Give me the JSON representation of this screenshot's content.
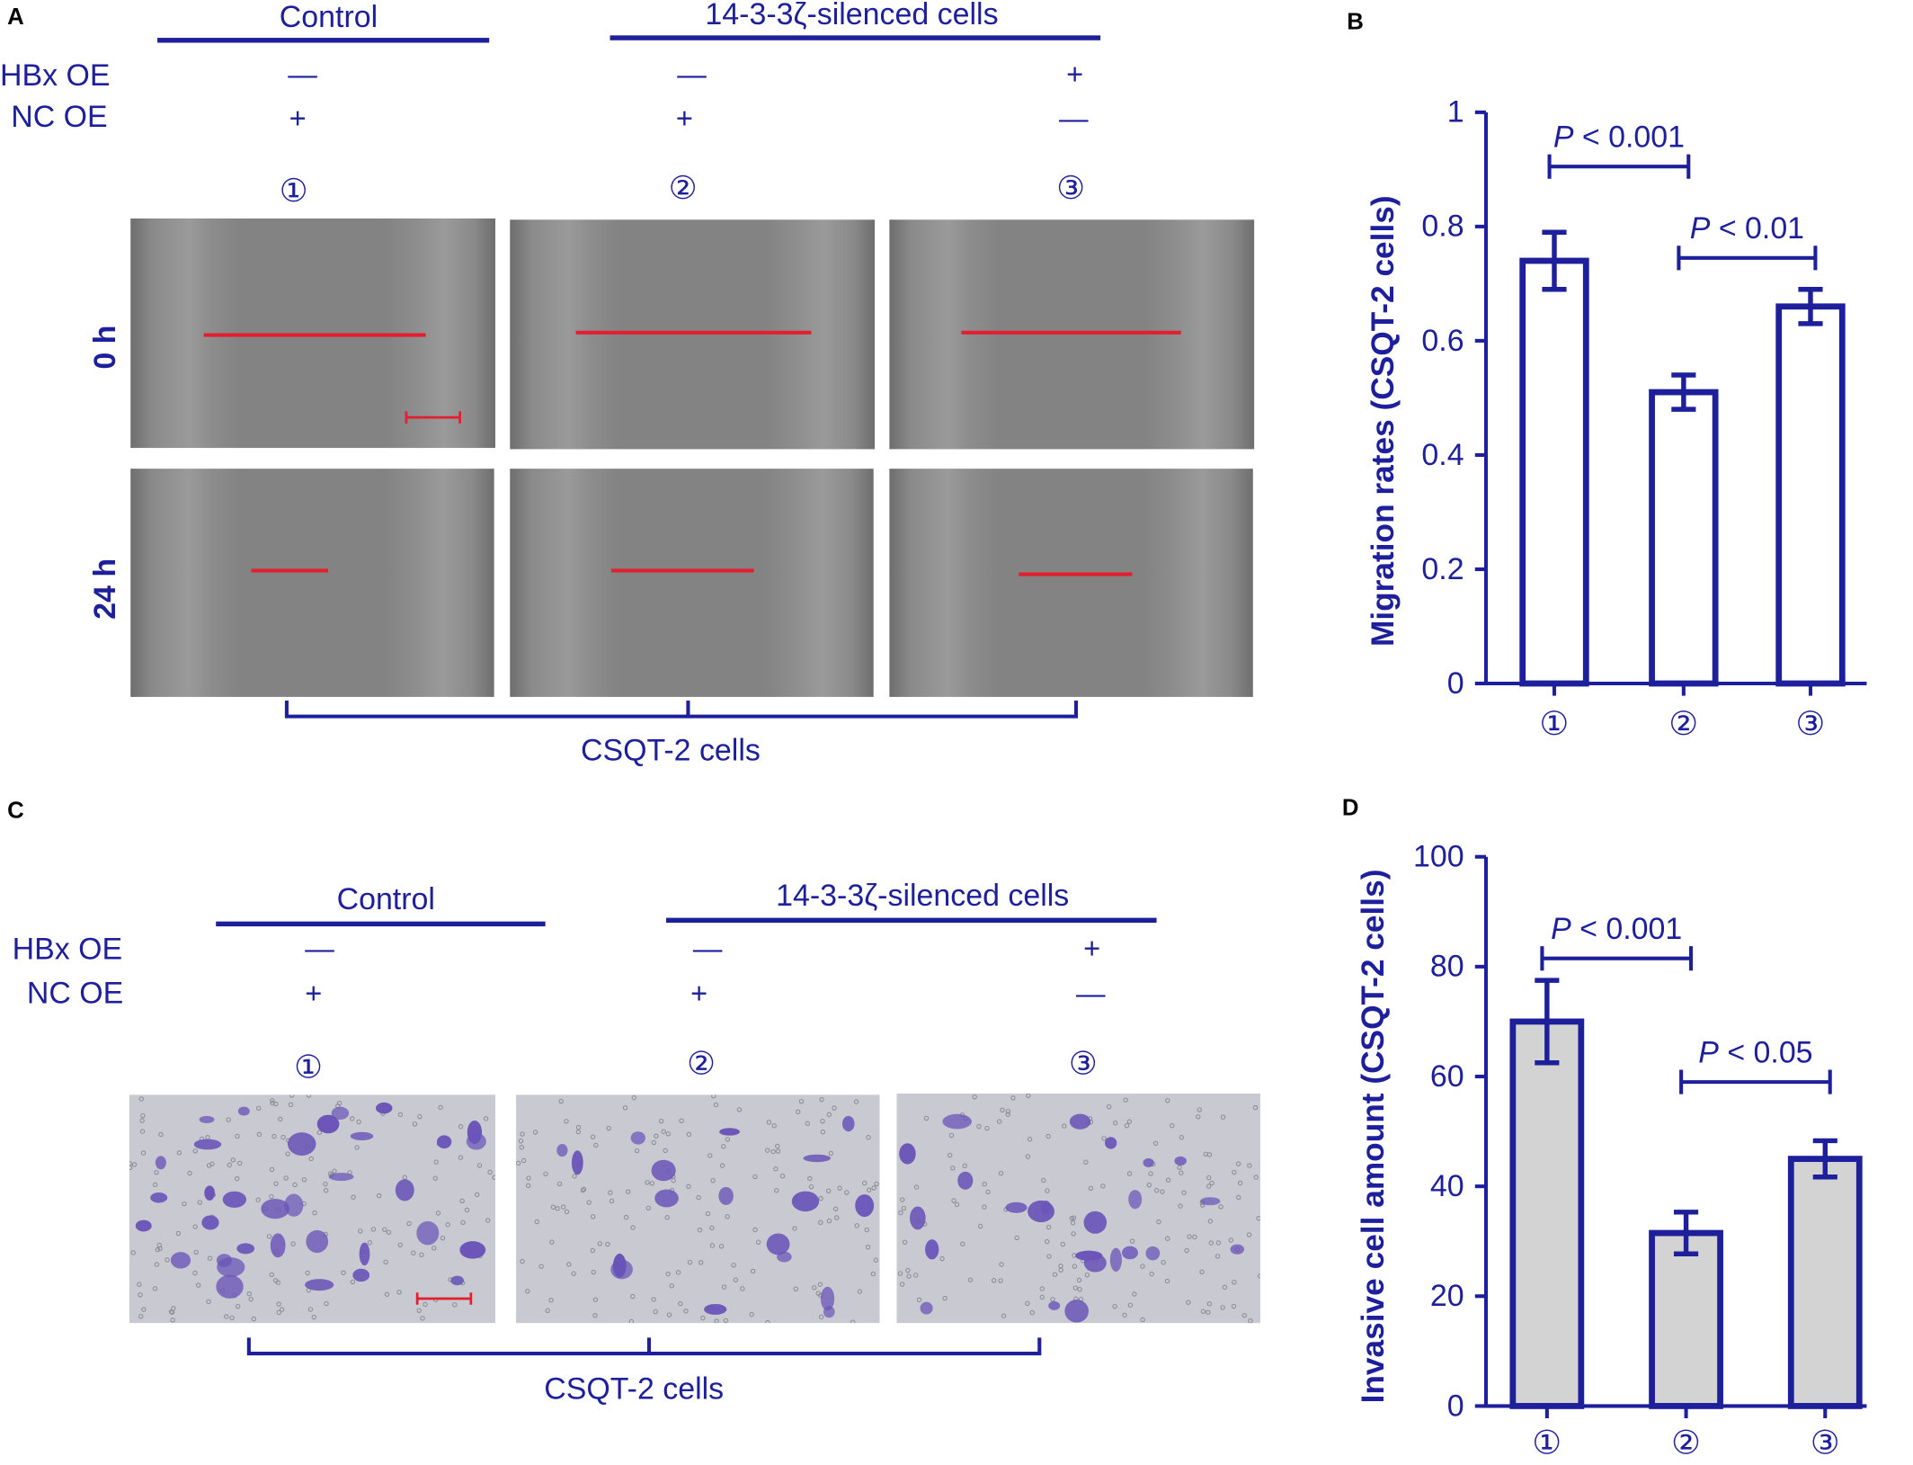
{
  "panelA": {
    "label": "A",
    "group_control": "Control",
    "group_silenced": "14-3-3ζ-silenced cells",
    "row_hbx": "HBx OE",
    "row_nc": "NC OE",
    "hbx_values": [
      "—",
      "—",
      "+"
    ],
    "nc_values": [
      "+",
      "+",
      "—"
    ],
    "circles": [
      "①",
      "②",
      "③"
    ],
    "time_0": "0 h",
    "time_24": "24 h",
    "footer": "CSQT-2 cells"
  },
  "panelC": {
    "label": "C",
    "group_control": "Control",
    "group_silenced": "14-3-3ζ-silenced cells",
    "row_hbx": "HBx OE",
    "row_nc": "NC OE",
    "hbx_values": [
      "—",
      "—",
      "+"
    ],
    "nc_values": [
      "+",
      "+",
      "—"
    ],
    "circles": [
      "①",
      "②",
      "③"
    ],
    "footer": "CSQT-2 cells"
  },
  "panelB_label": "B",
  "panelD_label": "D",
  "colors": {
    "accent": "#1d1f9b",
    "scratch_line": "#e31e2e",
    "bar_fill_B": "#ffffff",
    "bar_fill_D": "#d3d3d3"
  },
  "chart_data": [
    {
      "type": "bar",
      "panel": "B",
      "categories": [
        "①",
        "②",
        "③"
      ],
      "values": [
        0.74,
        0.51,
        0.66
      ],
      "errors": [
        0.05,
        0.03,
        0.03
      ],
      "ylabel": "Migration rates (CSQT-2 cells)",
      "ylim": [
        0,
        1
      ],
      "yticks": [
        0,
        0.2,
        0.4,
        0.6,
        0.8,
        1
      ],
      "ytick_labels": [
        "0",
        "0.2",
        "0.4",
        "0.6",
        "0.8",
        "1"
      ],
      "annotations": [
        {
          "from": 0,
          "to": 1,
          "text": "P < 0.001",
          "y": 0.905
        },
        {
          "from": 1,
          "to": 2,
          "text": "P < 0.01",
          "y": 0.745
        }
      ]
    },
    {
      "type": "bar",
      "panel": "D",
      "categories": [
        "①",
        "②",
        "③"
      ],
      "values": [
        70,
        31.5,
        45
      ],
      "errors": [
        7.5,
        3.8,
        3.3
      ],
      "ylabel": "Invasive cell amount (CSQT-2 cells)",
      "ylim": [
        0,
        100
      ],
      "yticks": [
        0,
        20,
        40,
        60,
        80,
        100
      ],
      "ytick_labels": [
        "0",
        "20",
        "40",
        "60",
        "80",
        "100"
      ],
      "annotations": [
        {
          "from": 0,
          "to": 1,
          "text": "P < 0.001",
          "y": 81.5
        },
        {
          "from": 1,
          "to": 2,
          "text": "P < 0.05",
          "y": 59
        }
      ]
    }
  ]
}
